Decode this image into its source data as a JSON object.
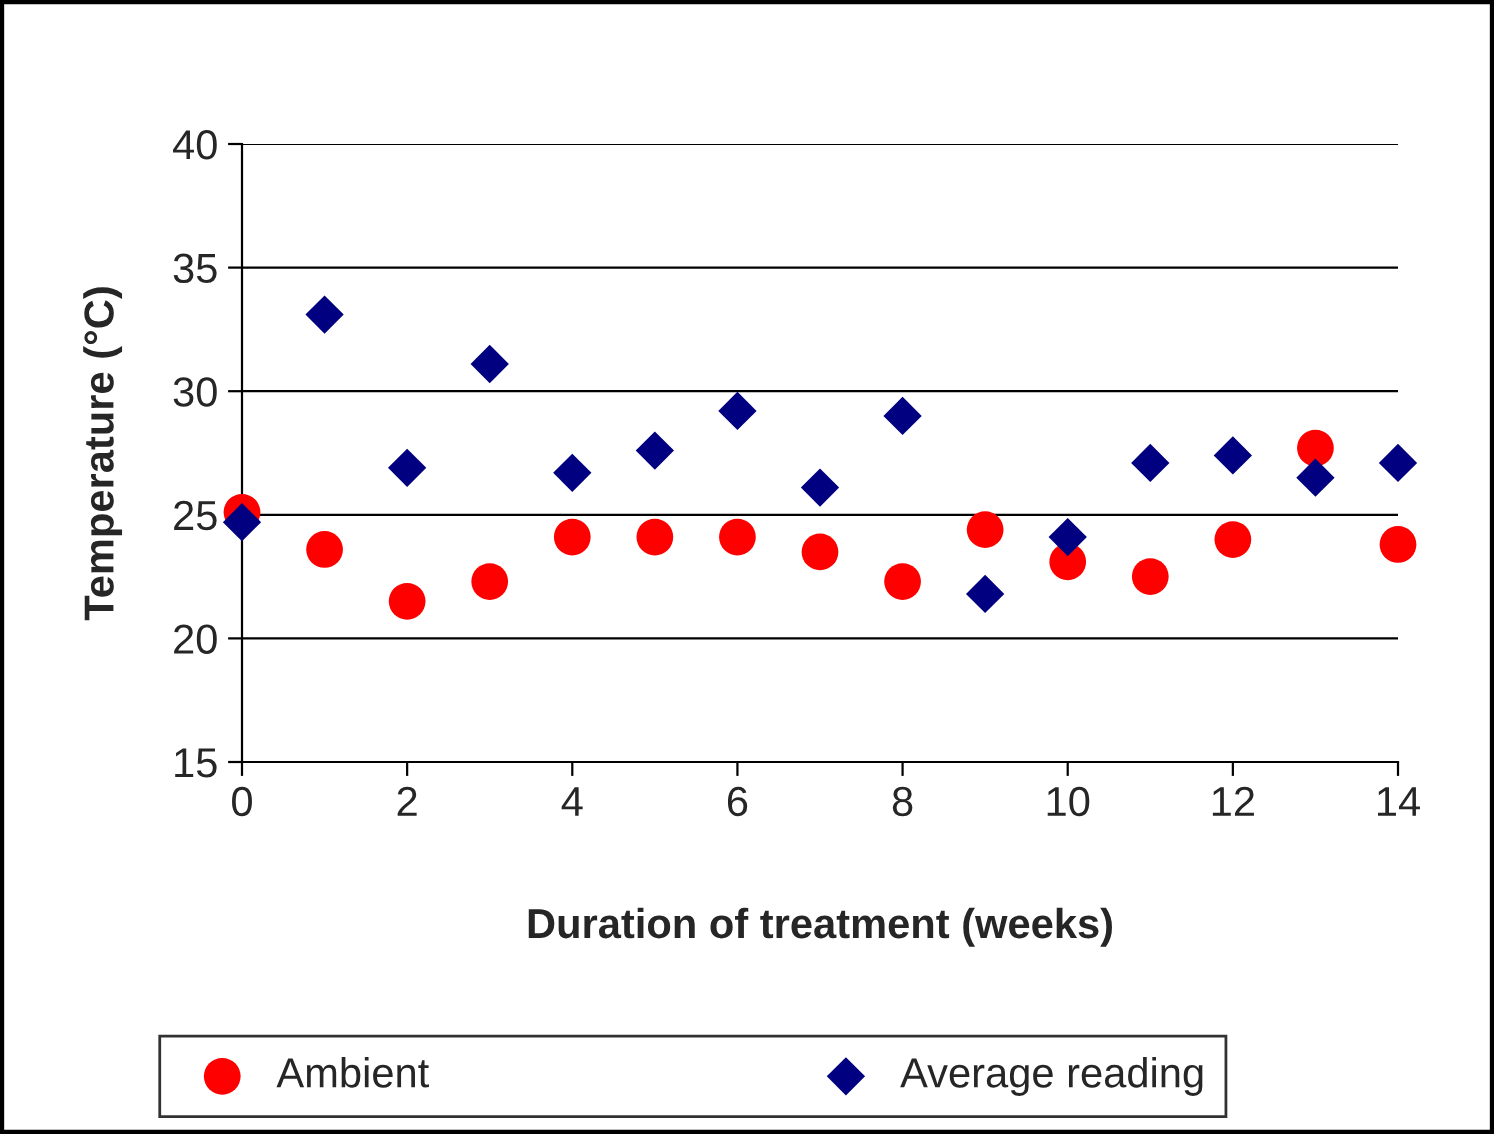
{
  "chart_data": {
    "type": "scatter",
    "xlabel": "Duration of treatment (weeks)",
    "ylabel": "Temperature (°C)",
    "x": [
      0,
      1,
      2,
      3,
      4,
      5,
      6,
      7,
      8,
      9,
      10,
      11,
      12,
      13,
      14
    ],
    "series": [
      {
        "name": "Ambient",
        "color": "#ff0000",
        "marker": "circle",
        "values": [
          25.1,
          23.6,
          21.5,
          22.3,
          24.1,
          24.1,
          24.1,
          23.5,
          22.3,
          24.4,
          23.1,
          22.5,
          24.0,
          27.7,
          23.8
        ]
      },
      {
        "name": "Average reading",
        "color": "#000080",
        "marker": "diamond",
        "values": [
          24.7,
          33.1,
          26.9,
          31.1,
          26.7,
          27.6,
          29.2,
          26.1,
          29.0,
          21.8,
          24.1,
          27.1,
          27.4,
          26.5,
          27.1
        ]
      }
    ],
    "xlim": [
      0,
      14
    ],
    "xticks": [
      0,
      2,
      4,
      6,
      8,
      10,
      12,
      14
    ],
    "ylim": [
      15,
      40
    ],
    "yticks": [
      15,
      20,
      25,
      30,
      35,
      40
    ],
    "grid": "y",
    "legend": "bottom"
  }
}
